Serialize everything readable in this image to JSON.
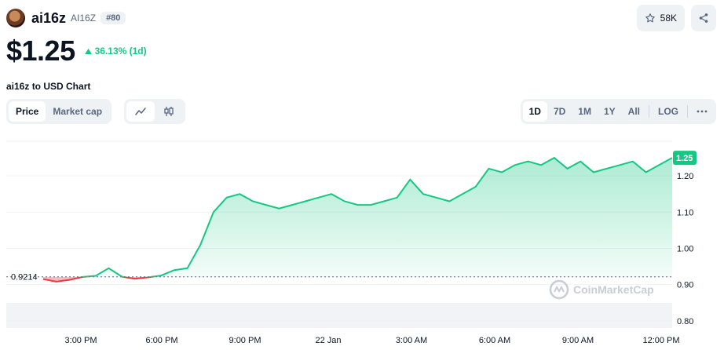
{
  "coin": {
    "name": "ai16z",
    "symbol": "AI16Z",
    "rank": "#80",
    "icon": "coin-avatar"
  },
  "watchlist": {
    "count": "58K",
    "icon": "star-icon"
  },
  "share": {
    "icon": "share-icon"
  },
  "price": {
    "value": "$1.25",
    "change": "36.13% (1d)",
    "change_color": "#16c784",
    "change_icon": "triangle-up-icon"
  },
  "chart_title": "ai16z to USD Chart",
  "tabs": [
    {
      "label": "Price",
      "active": true
    },
    {
      "label": "Market cap",
      "active": false
    }
  ],
  "chart_types": [
    {
      "icon": "line-chart-icon",
      "active": true
    },
    {
      "icon": "candlestick-icon",
      "active": false
    }
  ],
  "ranges": [
    "1D",
    "7D",
    "1M",
    "1Y",
    "All",
    "LOG"
  ],
  "active_range": "1D",
  "more_icon": "more-horizontal-icon",
  "watermark": "CoinMarketCap",
  "chart_data": {
    "type": "area",
    "x_ticks": [
      "3:00 PM",
      "6:00 PM",
      "9:00 PM",
      "22 Jan",
      "3:00 AM",
      "6:00 AM",
      "9:00 AM",
      "12:00 PM"
    ],
    "y_ticks": [
      0.8,
      0.9,
      1.0,
      1.1,
      1.2
    ],
    "y_tick_labels": [
      "0.80",
      "0.90",
      "1.00",
      "1.10",
      "1.20"
    ],
    "ylim": [
      0.78,
      1.3
    ],
    "baseline": 0.9214,
    "baseline_label": "0.9214",
    "current_label": "1.25",
    "up_color": "#16c784",
    "down_color": "#ea3943",
    "x_hours": [
      0,
      0.5,
      1,
      1.5,
      2,
      2.5,
      3,
      3.5,
      4,
      4.5,
      5,
      5.5,
      6,
      6.5,
      7,
      7.5,
      8,
      8.5,
      9,
      9.5,
      10,
      10.5,
      11,
      11.5,
      12,
      12.5,
      13,
      13.5,
      14,
      14.5,
      15,
      15.5,
      16,
      16.5,
      17,
      17.5,
      18,
      18.5,
      19,
      19.5,
      20,
      20.5,
      21,
      21.5,
      22,
      22.5,
      23,
      23.5,
      24
    ],
    "values": [
      0.915,
      0.908,
      0.913,
      0.921,
      0.924,
      0.945,
      0.922,
      0.916,
      0.92,
      0.925,
      0.94,
      0.945,
      1.01,
      1.1,
      1.14,
      1.15,
      1.13,
      1.12,
      1.11,
      1.12,
      1.13,
      1.14,
      1.15,
      1.13,
      1.12,
      1.12,
      1.13,
      1.14,
      1.19,
      1.15,
      1.14,
      1.13,
      1.15,
      1.17,
      1.22,
      1.21,
      1.23,
      1.24,
      1.23,
      1.25,
      1.22,
      1.24,
      1.21,
      1.22,
      1.23,
      1.24,
      1.21,
      1.23,
      1.25
    ]
  }
}
